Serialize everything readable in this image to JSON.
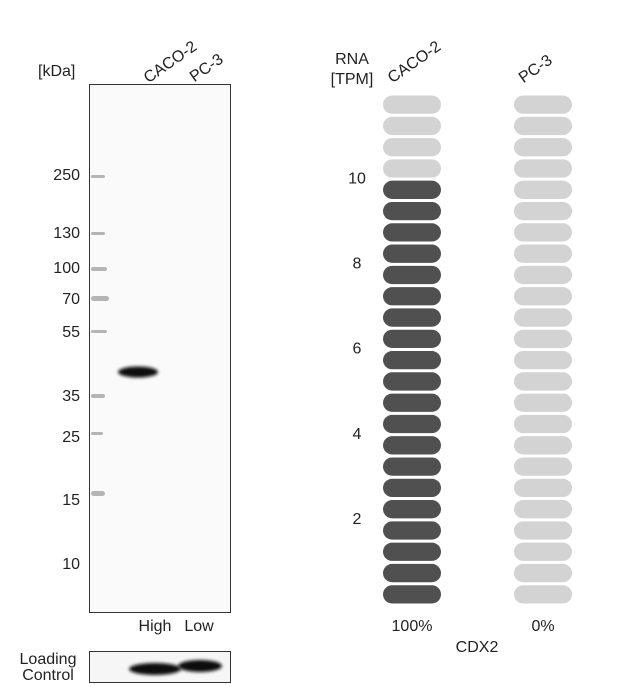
{
  "western_blot": {
    "unit_label": "[kDa]",
    "lanes": [
      "CACO-2",
      "PC-3"
    ],
    "markers": [
      "250",
      "130",
      "100",
      "70",
      "55",
      "35",
      "25",
      "15",
      "10"
    ],
    "levels": [
      "High",
      "Low"
    ],
    "loading_control": [
      "Loading",
      "Control"
    ]
  },
  "rna": {
    "title": [
      "RNA",
      "[TPM]"
    ],
    "ylim": [
      0,
      12
    ],
    "yticks": [
      2,
      4,
      6,
      8,
      10
    ],
    "gene": "CDX2",
    "dark_color": "#505050",
    "light_color": "#d3d3d3",
    "samples": [
      {
        "name": "CACO-2",
        "tpm": 10,
        "label": "100%"
      },
      {
        "name": "PC-3",
        "tpm": 0,
        "label": "0%"
      }
    ]
  }
}
